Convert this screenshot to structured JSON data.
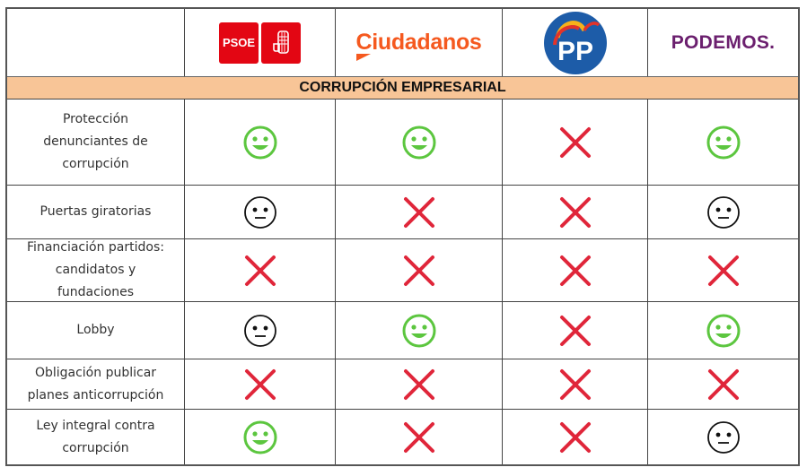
{
  "table": {
    "section_title": "CORRUPCIÓN EMPRESARIAL",
    "parties": [
      {
        "name": "PSOE",
        "logo": "psoe-logo",
        "color": "#e30613"
      },
      {
        "name": "Ciudadanos",
        "logo": "ciudadanos-logo",
        "color": "#f5591f"
      },
      {
        "name": "PP",
        "logo": "pp-logo",
        "color": "#1d5ca8"
      },
      {
        "name": "PODEMOS.",
        "logo": "podemos-logo",
        "color": "#6b1f6e"
      }
    ],
    "rows": [
      {
        "label_lines": [
          "Protección",
          "denunciantes de",
          "corrupción"
        ],
        "ratings": [
          "happy",
          "happy",
          "cross",
          "happy"
        ]
      },
      {
        "label_lines": [
          "Puertas giratorias"
        ],
        "ratings": [
          "neutral",
          "cross",
          "cross",
          "neutral"
        ]
      },
      {
        "label_lines": [
          "Financiación partidos:",
          "candidatos y",
          "fundaciones"
        ],
        "ratings": [
          "cross",
          "cross",
          "cross",
          "cross"
        ]
      },
      {
        "label_lines": [
          "Lobby"
        ],
        "ratings": [
          "neutral",
          "happy",
          "cross",
          "happy"
        ]
      },
      {
        "label_lines": [
          "Obligación publicar",
          "planes anticorrupción"
        ],
        "ratings": [
          "cross",
          "cross",
          "cross",
          "cross"
        ]
      },
      {
        "label_lines": [
          "Ley integral contra",
          "corrupción"
        ],
        "ratings": [
          "happy",
          "cross",
          "cross",
          "neutral"
        ]
      }
    ]
  },
  "colors": {
    "happy": "#5cc63f",
    "cross": "#e0263a",
    "neutral": "#111111",
    "section_bg": "#f8c597"
  }
}
